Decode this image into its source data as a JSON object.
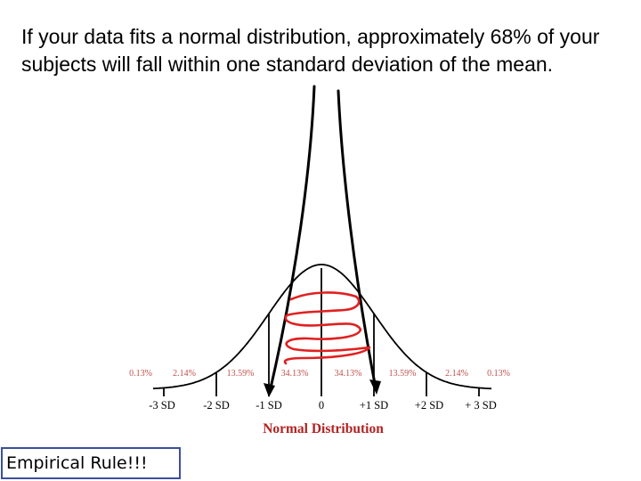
{
  "slide": {
    "heading": "If your data fits a normal distribution, approximately 68% of your subjects will fall within one standard deviation of the mean.",
    "empirical_label": "Empirical Rule!!!"
  },
  "figure": {
    "title": "Normal Distribution",
    "percentages": [
      "0.13%",
      "2.14%",
      "13.59%",
      "34.13%",
      "34.13%",
      "13.59%",
      "2.14%",
      "0.13%"
    ],
    "sd_labels": [
      "-3 SD",
      "-2 SD",
      "-1 SD",
      "0",
      "+1 SD",
      "+2 SD",
      "+ 3 SD"
    ],
    "colors": {
      "curve": "#000000",
      "annotation": "#e02020",
      "percent_text": "#c0504d",
      "title": "#b22222"
    }
  }
}
